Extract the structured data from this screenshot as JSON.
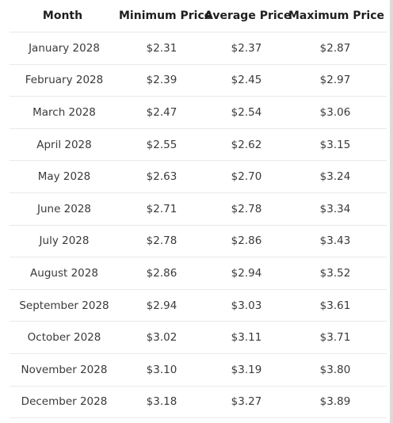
{
  "table": {
    "headers": {
      "month": "Month",
      "min": "Minimum Price",
      "avg": "Average Price",
      "max": "Maximum Price"
    },
    "rows": [
      {
        "month": "January 2028",
        "min": "$2.31",
        "avg": "$2.37",
        "max": "$2.87"
      },
      {
        "month": "February 2028",
        "min": "$2.39",
        "avg": "$2.45",
        "max": "$2.97"
      },
      {
        "month": "March 2028",
        "min": "$2.47",
        "avg": "$2.54",
        "max": "$3.06"
      },
      {
        "month": "April 2028",
        "min": "$2.55",
        "avg": "$2.62",
        "max": "$3.15"
      },
      {
        "month": "May 2028",
        "min": "$2.63",
        "avg": "$2.70",
        "max": "$3.24"
      },
      {
        "month": "June 2028",
        "min": "$2.71",
        "avg": "$2.78",
        "max": "$3.34"
      },
      {
        "month": "July 2028",
        "min": "$2.78",
        "avg": "$2.86",
        "max": "$3.43"
      },
      {
        "month": "August 2028",
        "min": "$2.86",
        "avg": "$2.94",
        "max": "$3.52"
      },
      {
        "month": "September 2028",
        "min": "$2.94",
        "avg": "$3.03",
        "max": "$3.61"
      },
      {
        "month": "October 2028",
        "min": "$3.02",
        "avg": "$3.11",
        "max": "$3.71"
      },
      {
        "month": "November 2028",
        "min": "$3.10",
        "avg": "$3.19",
        "max": "$3.80"
      },
      {
        "month": "December 2028",
        "min": "$3.18",
        "avg": "$3.27",
        "max": "$3.89"
      }
    ]
  }
}
